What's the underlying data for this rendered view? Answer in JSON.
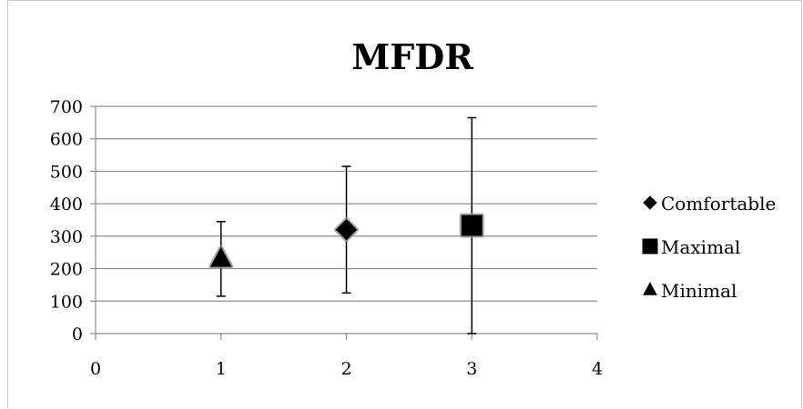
{
  "chart_data": {
    "type": "scatter",
    "title": "MFDR",
    "xlabel": "",
    "ylabel": "",
    "xlim": [
      0,
      4
    ],
    "ylim": [
      0,
      700
    ],
    "x_ticks": [
      0,
      1,
      2,
      3,
      4
    ],
    "y_ticks": [
      0,
      100,
      200,
      300,
      400,
      500,
      600,
      700
    ],
    "grid": {
      "horizontal": true,
      "vertical": false
    },
    "legend_position": "right",
    "series": [
      {
        "name": "Comfortable",
        "marker": "diamond",
        "points": [
          {
            "x": 2,
            "y": 320,
            "err_low": 125,
            "err_high": 515
          }
        ]
      },
      {
        "name": "Maximal",
        "marker": "square",
        "points": [
          {
            "x": 3,
            "y": 333,
            "err_low": 0,
            "err_high": 665
          }
        ]
      },
      {
        "name": "Minimal",
        "marker": "triangle",
        "points": [
          {
            "x": 1,
            "y": 230,
            "err_low": 115,
            "err_high": 345
          }
        ]
      }
    ],
    "colors": {
      "marker": "#000000",
      "grid": "#8c8c8c",
      "axis": "#8c8c8c"
    }
  }
}
